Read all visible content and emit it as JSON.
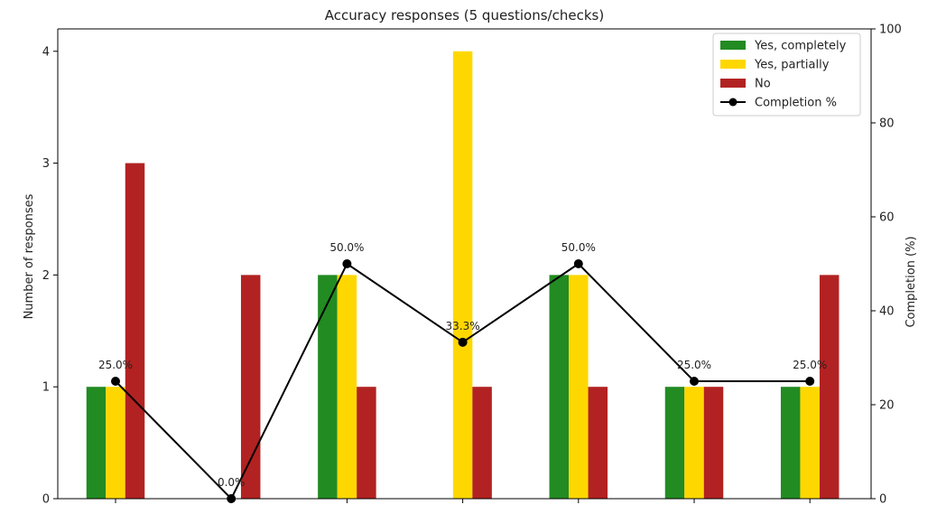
{
  "chart_data": {
    "type": "bar",
    "title": "Accuracy responses (5 questions/checks)",
    "ylabel": "Number of responses",
    "y2label": "Completion (%)",
    "xlabel": "",
    "categories": [
      "",
      "",
      "",
      "",
      "",
      "",
      ""
    ],
    "ylim": [
      0,
      4.2
    ],
    "y2lim": [
      0,
      100
    ],
    "yticks": [
      0,
      1,
      2,
      3,
      4
    ],
    "y2ticks": [
      0,
      20,
      40,
      60,
      80,
      100
    ],
    "series": [
      {
        "name": "Yes, completely",
        "type": "bar",
        "color": "#228b22",
        "values": [
          1,
          0,
          2,
          0,
          2,
          1,
          1
        ]
      },
      {
        "name": "Yes, partially",
        "type": "bar",
        "color": "#ffd700",
        "values": [
          1,
          0,
          2,
          4,
          2,
          1,
          1
        ]
      },
      {
        "name": "No",
        "type": "bar",
        "color": "#b22222",
        "values": [
          3,
          2,
          1,
          1,
          1,
          1,
          2
        ]
      },
      {
        "name": "Completion %",
        "type": "line",
        "axis": "right",
        "color": "#000000",
        "values": [
          25.0,
          0.0,
          50.0,
          33.3,
          50.0,
          25.0,
          25.0
        ],
        "labels": [
          "25.0%",
          "0.0%",
          "50.0%",
          "33.3%",
          "50.0%",
          "25.0%",
          "25.0%"
        ]
      }
    ],
    "legend_position": "top-right",
    "grid": false
  }
}
